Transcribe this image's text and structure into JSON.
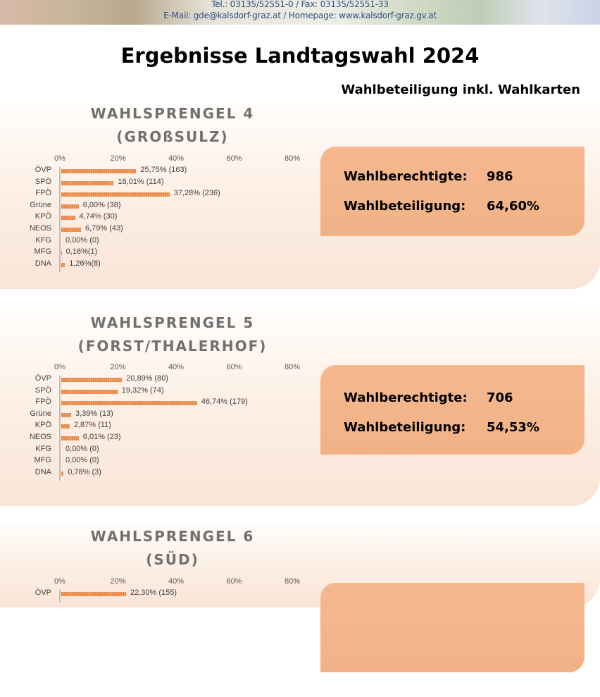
{
  "header": {
    "line1": "Tel.: 03135/52551-0 / Fax: 03135/52551-33",
    "line2": "E-Mail: gde@kalsdorf-graz.at / Homepage: www.kalsdorf-graz.gv.at"
  },
  "title": "Ergebnisse Landtagswahl 2024",
  "subtitle": "Wahlbeteiligung inkl. Wahlkarten",
  "colors": {
    "bar": "#e8894a",
    "box": "#f4b58b",
    "title_gray": "#707070"
  },
  "sections": [
    {
      "title1": "WAHLSPRENGEL 4",
      "title2": "(GROßSULZ)",
      "wahlberechtigte_label": "Wahlberechtigte:",
      "wahlberechtigte": "986",
      "wahlbeteiligung_label": "Wahlbeteiligung:",
      "wahlbeteiligung": "64,60%"
    },
    {
      "title1": "WAHLSPRENGEL 5",
      "title2": "(FORST/THALERHOF)",
      "wahlberechtigte_label": "Wahlberechtigte:",
      "wahlberechtigte": "706",
      "wahlbeteiligung_label": "Wahlbeteiligung:",
      "wahlbeteiligung": "54,53%"
    },
    {
      "title1": "WAHLSPRENGEL 6",
      "title2": "(SÜD)"
    }
  ],
  "chart_data": [
    {
      "type": "bar",
      "orientation": "horizontal",
      "xlim": [
        0,
        80
      ],
      "ticks": [
        "0%",
        "20%",
        "40%",
        "60%",
        "80%"
      ],
      "categories": [
        "ÖVP",
        "SPÖ",
        "FPÖ",
        "Grüne",
        "KPÖ",
        "NEOS",
        "KFG",
        "MFG",
        "DNA"
      ],
      "values": [
        25.75,
        18.01,
        37.28,
        6.0,
        4.74,
        6.79,
        0.0,
        0.16,
        1.26
      ],
      "labels": [
        "25,75% (163)",
        "18,01% (114)",
        "37,28% (236)",
        "6,00% (38)",
        "4,74% (30)",
        "6,79% (43)",
        "0,00% (0)",
        "0,16%(1)",
        "1,26%(8)"
      ]
    },
    {
      "type": "bar",
      "orientation": "horizontal",
      "xlim": [
        0,
        80
      ],
      "ticks": [
        "0%",
        "20%",
        "40%",
        "60%",
        "80%"
      ],
      "categories": [
        "ÖVP",
        "SPÖ",
        "FPÖ",
        "Grüne",
        "KPÖ",
        "NEOS",
        "KFG",
        "MFG",
        "DNA"
      ],
      "values": [
        20.89,
        19.32,
        46.74,
        3.39,
        2.87,
        6.01,
        0.0,
        0.0,
        0.78
      ],
      "labels": [
        "20,89% (80)",
        "19,32% (74)",
        "46,74% (179)",
        "3,39% (13)",
        "2,87% (11)",
        "6,01% (23)",
        "0,00% (0)",
        "0,00% (0)",
        "0,78% (3)"
      ]
    },
    {
      "type": "bar",
      "orientation": "horizontal",
      "xlim": [
        0,
        80
      ],
      "ticks": [
        "0%",
        "20%",
        "40%",
        "60%",
        "80%"
      ],
      "categories": [
        "ÖVP"
      ],
      "values": [
        22.3
      ],
      "labels": [
        "22,30% (155)"
      ]
    }
  ]
}
